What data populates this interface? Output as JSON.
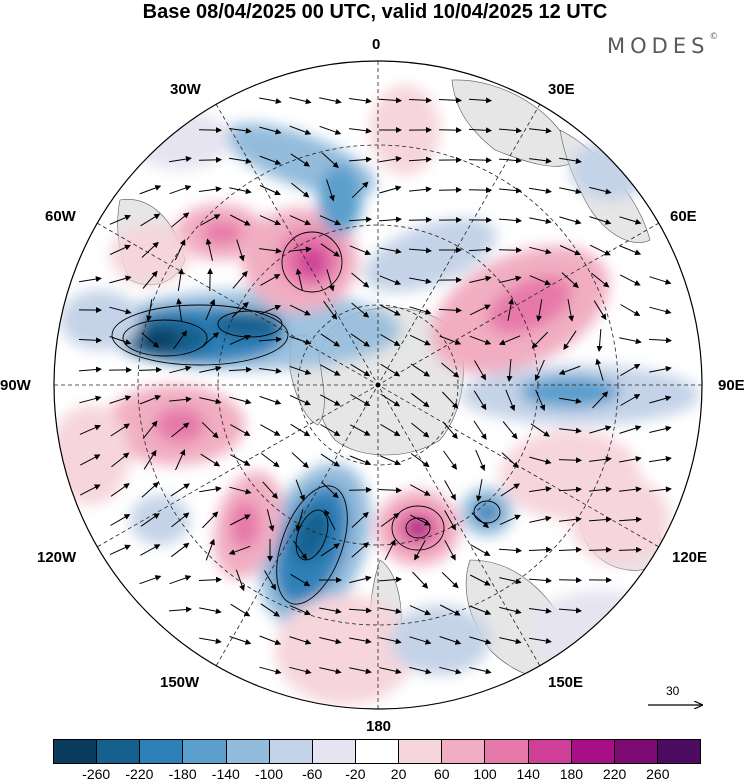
{
  "header": {
    "title": "Base 08/04/2025 00 UTC, valid 10/04/2025 12 UTC",
    "brand": "MODES",
    "brand_mark": "©"
  },
  "map": {
    "projection": "polar stereographic (southern hemisphere)",
    "lon_labels": {
      "top": "0",
      "bottom": "180",
      "left": "90W",
      "right": "90E",
      "upper_left_30": "30W",
      "upper_right_30": "30E",
      "upper_left_60": "60W",
      "upper_right_60": "60E",
      "lower_left_120": "120W",
      "lower_right_120": "120E",
      "lower_left_150": "150W",
      "lower_right_150": "150E"
    },
    "reference_vector": {
      "value": "30"
    },
    "land_color": "#e6e6e6",
    "grid": "dashed lat/lon lines"
  },
  "legend": {
    "ticks": [
      "-260",
      "-220",
      "-180",
      "-140",
      "-100",
      "-60",
      "-20",
      "20",
      "60",
      "100",
      "140",
      "180",
      "220",
      "260"
    ],
    "colors": [
      "#0b3c5d",
      "#15608f",
      "#2d80b8",
      "#5b9fcc",
      "#93bbdc",
      "#c5d3e8",
      "#e6e4f0",
      "#ffffff",
      "#f6d5dc",
      "#f1aec2",
      "#e679a9",
      "#cf3f98",
      "#a80f86",
      "#7d0a73",
      "#4e0b62"
    ]
  }
}
